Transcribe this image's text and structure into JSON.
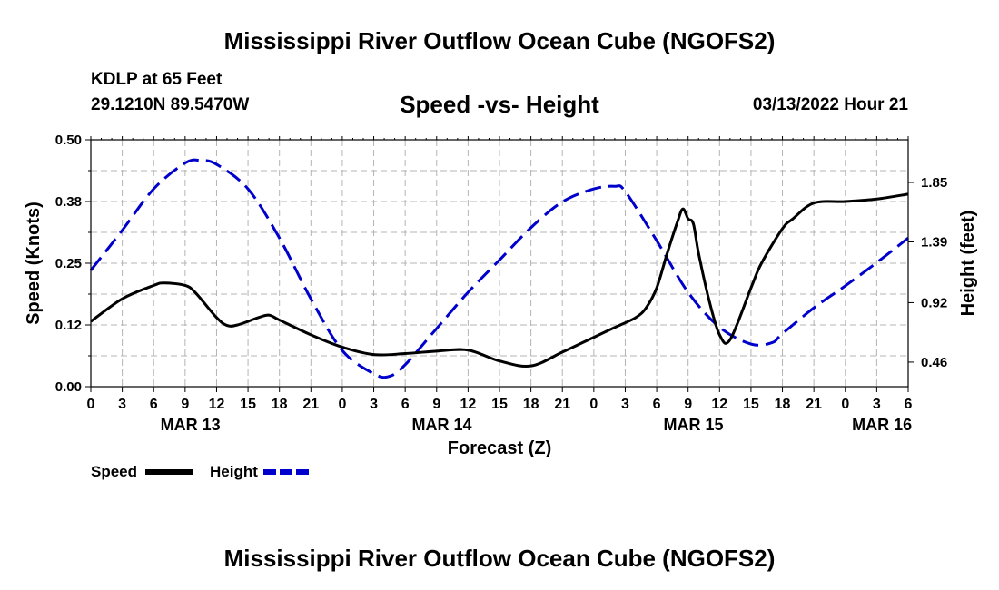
{
  "title": "Mississippi River Outflow Ocean Cube (NGOFS2)",
  "station": "KDLP at 65 Feet",
  "coordinates": "29.1210N  89.5470W",
  "subtitle": "Speed -vs- Height",
  "datetime": "03/13/2022 Hour 21",
  "footer_title": "Mississippi River Outflow Ocean Cube (NGOFS2)",
  "colors": {
    "speed": "#000000",
    "height": "#0000cc",
    "grid": "#b4b4b4"
  },
  "chart_data": {
    "type": "line",
    "xlabel": "Forecast (Z)",
    "ylabel_left": "Speed (Knots)",
    "ylabel_right": "Height (feet)",
    "x_range_hours": [
      0,
      78
    ],
    "ylim_left": [
      0,
      0.5
    ],
    "ylim_right": [
      0.27,
      2.18
    ],
    "left_ticks": [
      "0.00",
      "0.12",
      "0.25",
      "0.38",
      "0.50"
    ],
    "right_ticks": [
      {
        "value": 0.46,
        "label": "0.46"
      },
      {
        "value": 0.92,
        "label": "0.92"
      },
      {
        "value": 1.39,
        "label": "1.39"
      },
      {
        "value": 1.85,
        "label": "1.85"
      }
    ],
    "x_tick_labels": [
      "0",
      "3",
      "6",
      "9",
      "12",
      "15",
      "18",
      "21",
      "0",
      "3",
      "6",
      "9",
      "12",
      "15",
      "18",
      "21",
      "0",
      "3",
      "6",
      "9",
      "12",
      "15",
      "18",
      "21",
      "0",
      "3",
      "6"
    ],
    "date_labels": [
      {
        "label": "MAR 13",
        "hour": 9.5
      },
      {
        "label": "MAR 14",
        "hour": 33.5
      },
      {
        "label": "MAR 15",
        "hour": 57.5
      },
      {
        "label": "MAR 16",
        "hour": 75.5
      }
    ],
    "legend": [
      {
        "name": "Speed",
        "style": "solid"
      },
      {
        "name": "Height",
        "style": "dashed"
      }
    ],
    "series": [
      {
        "name": "Speed",
        "axis": "left",
        "x": [
          0,
          3,
          6,
          7,
          9,
          10,
          12,
          13,
          14,
          16,
          17,
          18,
          21,
          24,
          27,
          30,
          33,
          36,
          39,
          42,
          45,
          48,
          50,
          52,
          53,
          54,
          55,
          56,
          56.5,
          57,
          57.5,
          58,
          59,
          60,
          61,
          63,
          64,
          66,
          67,
          69,
          72,
          75,
          78
        ],
        "values": [
          0.132,
          0.178,
          0.205,
          0.21,
          0.205,
          0.19,
          0.14,
          0.124,
          0.125,
          0.14,
          0.145,
          0.135,
          0.105,
          0.08,
          0.065,
          0.067,
          0.072,
          0.074,
          0.052,
          0.042,
          0.07,
          0.1,
          0.12,
          0.14,
          0.16,
          0.2,
          0.27,
          0.335,
          0.36,
          0.34,
          0.33,
          0.27,
          0.175,
          0.105,
          0.095,
          0.2,
          0.25,
          0.32,
          0.34,
          0.372,
          0.375,
          0.38,
          0.39
        ]
      },
      {
        "name": "Height",
        "axis": "right",
        "x": [
          0,
          3,
          6,
          9,
          10.5,
          12,
          15,
          18,
          21,
          24,
          27,
          28.5,
          30,
          33,
          36,
          39,
          42,
          45,
          48,
          50,
          51,
          54,
          57,
          60,
          63,
          65,
          66,
          69,
          72,
          75,
          78
        ],
        "values": [
          1.17,
          1.48,
          1.8,
          2.0,
          2.02,
          1.99,
          1.8,
          1.42,
          0.95,
          0.55,
          0.37,
          0.35,
          0.44,
          0.72,
          1.0,
          1.25,
          1.5,
          1.7,
          1.8,
          1.82,
          1.78,
          1.4,
          1.0,
          0.73,
          0.6,
          0.61,
          0.68,
          0.88,
          1.05,
          1.23,
          1.42
        ]
      }
    ]
  }
}
